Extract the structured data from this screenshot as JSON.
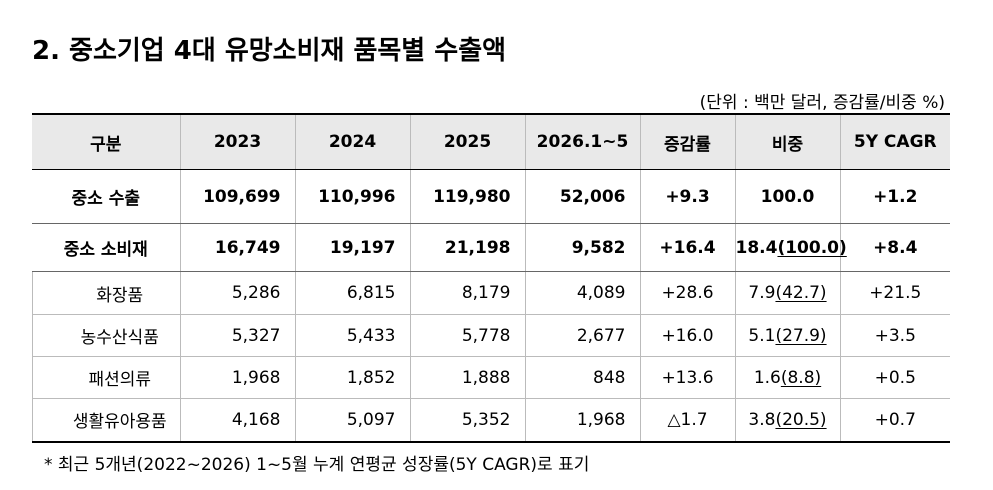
{
  "header": {
    "title": "2. 중소기업 4대 유망소비재 품목별 수출액",
    "unit_note": "(단위 : 백만 달러, 증감률/비중 %)"
  },
  "table": {
    "columns": [
      "구분",
      "2023",
      "2024",
      "2025",
      "2026.1~5",
      "증감률",
      "비중",
      "5Y CAGR"
    ],
    "rows": [
      {
        "label": "중소 수출",
        "values": [
          "109,699",
          "110,996",
          "119,980",
          "52,006",
          "+9.3"
        ],
        "share": "100.0",
        "cagr": "+1.2"
      },
      {
        "label": "중소 소비재",
        "values": [
          "16,749",
          "19,197",
          "21,198",
          "9,582",
          "+16.4"
        ],
        "share": "18.4",
        "share_within": "(100.0)",
        "cagr": "+8.4"
      },
      {
        "label": "화장품",
        "values": [
          "5,286",
          "6,815",
          "8,179",
          "4,089",
          "+28.6"
        ],
        "share": "7.9",
        "share_within": "(42.7)",
        "cagr": "+21.5"
      },
      {
        "label": "농수산식품",
        "values": [
          "5,327",
          "5,433",
          "5,778",
          "2,677",
          "+16.0"
        ],
        "share": "5.1",
        "share_within": "(27.9)",
        "cagr": "+3.5"
      },
      {
        "label": "패션의류",
        "values": [
          "1,968",
          "1,852",
          "1,888",
          "848",
          "+13.6"
        ],
        "share": "1.6",
        "share_within": "(8.8)",
        "cagr": "+0.5"
      },
      {
        "label": "생활유아용품",
        "values": [
          "4,168",
          "5,097",
          "5,352",
          "1,968",
          "△1.7"
        ],
        "share": "3.8",
        "share_within": "(20.5)",
        "cagr": "+0.7"
      }
    ]
  },
  "footnote": "* 최근 5개년(2022~2026) 1~5월 누계 연평균 성장률(5Y CAGR)로 표기"
}
